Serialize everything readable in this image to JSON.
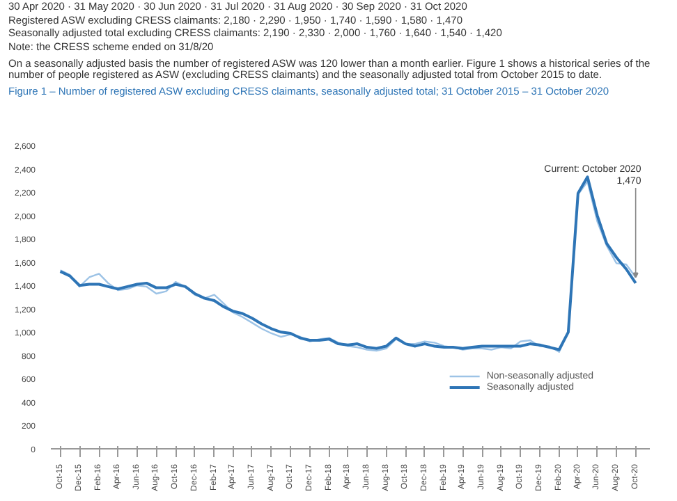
{
  "chart_data": {
    "type": "line",
    "title": "Figure 1 – Number of registered ASW excluding CRESS claimants, seasonally adjusted total; 31 October 2015 – 31 October 2020",
    "subtitle": "On a seasonally adjusted basis the number of registered ASW was 120 lower than a month earlier. Figure 1 shows a historical series of the number of people registered as ASW (excluding CRESS claimants) and the seasonally adjusted total from October 2015 to date.",
    "annotations": [
      "30 Apr 2020 · 31 May 2020 · 30 Jun 2020 · 31 Jul 2020 · 31 Aug 2020 · 30 Sep 2020 · 31 Oct 2020",
      "Registered ASW excluding CRESS claimants: 2,180 · 2,290 · 1,950 · 1,740 · 1,590 · 1,580 · 1,470",
      "Seasonally adjusted total excluding CRESS claimants: 2,190 · 2,330 · 2,000 · 1,760 · 1,640 · 1,540 · 1,420",
      "Note: the CRESS scheme ended on 31/8/20",
      {
        "text": "Current: October 2020\n1,470",
        "x": "2020-10",
        "y": 1470
      }
    ],
    "x": [
      "2015-10",
      "2015-11",
      "2015-12",
      "2016-01",
      "2016-02",
      "2016-03",
      "2016-04",
      "2016-05",
      "2016-06",
      "2016-07",
      "2016-08",
      "2016-09",
      "2016-10",
      "2016-11",
      "2016-12",
      "2017-01",
      "2017-02",
      "2017-03",
      "2017-04",
      "2017-05",
      "2017-06",
      "2017-07",
      "2017-08",
      "2017-09",
      "2017-10",
      "2017-11",
      "2017-12",
      "2018-01",
      "2018-02",
      "2018-03",
      "2018-04",
      "2018-05",
      "2018-06",
      "2018-07",
      "2018-08",
      "2018-09",
      "2018-10",
      "2018-11",
      "2018-12",
      "2019-01",
      "2019-02",
      "2019-03",
      "2019-04",
      "2019-05",
      "2019-06",
      "2019-07",
      "2019-08",
      "2019-09",
      "2019-10",
      "2019-11",
      "2019-12",
      "2020-01",
      "2020-02",
      "2020-03",
      "2020-04",
      "2020-05",
      "2020-06",
      "2020-07",
      "2020-08",
      "2020-09",
      "2020-10"
    ],
    "series": [
      {
        "name": "Non-seasonally adjusted",
        "color": "#9dc3e6",
        "values": [
          1530,
          1490,
          1390,
          1470,
          1500,
          1420,
          1360,
          1370,
          1400,
          1390,
          1330,
          1350,
          1430,
          1390,
          1320,
          1290,
          1320,
          1250,
          1170,
          1130,
          1080,
          1030,
          990,
          960,
          980,
          960,
          920,
          940,
          950,
          910,
          880,
          870,
          850,
          840,
          860,
          940,
          900,
          900,
          920,
          910,
          880,
          870,
          850,
          860,
          860,
          850,
          870,
          860,
          920,
          930,
          880,
          880,
          830,
          1000,
          2180,
          2290,
          1950,
          1740,
          1590,
          1580,
          1470
        ]
      },
      {
        "name": "Seasonally adjusted",
        "color": "#2e75b6",
        "values": [
          1520,
          1480,
          1400,
          1410,
          1410,
          1390,
          1370,
          1390,
          1410,
          1420,
          1380,
          1380,
          1410,
          1390,
          1330,
          1290,
          1270,
          1220,
          1180,
          1160,
          1120,
          1070,
          1030,
          1000,
          990,
          950,
          930,
          930,
          940,
          900,
          890,
          900,
          870,
          860,
          880,
          950,
          900,
          880,
          900,
          880,
          870,
          870,
          860,
          870,
          880,
          880,
          880,
          880,
          880,
          900,
          890,
          870,
          850,
          1000,
          2190,
          2330,
          2000,
          1760,
          1640,
          1540,
          1420
        ]
      }
    ],
    "xlim": [
      "2015-09-01",
      "2020-11-15"
    ],
    "xticks": [
      {
        "value": "2015-10",
        "label": "Oct-15"
      },
      {
        "value": "2015-12",
        "label": "Dec-15"
      },
      {
        "value": "2016-02",
        "label": "Feb-16"
      },
      {
        "value": "2016-04",
        "label": "Apr-16"
      },
      {
        "value": "2016-06",
        "label": "Jun-16"
      },
      {
        "value": "2016-08",
        "label": "Aug-16"
      },
      {
        "value": "2016-10",
        "label": "Oct-16"
      },
      {
        "value": "2016-12",
        "label": "Dec-16"
      },
      {
        "value": "2017-02",
        "label": "Feb-17"
      },
      {
        "value": "2017-04",
        "label": "Apr-17"
      },
      {
        "value": "2017-06",
        "label": "Jun-17"
      },
      {
        "value": "2017-08",
        "label": "Aug-17"
      },
      {
        "value": "2017-10",
        "label": "Oct-17"
      },
      {
        "value": "2017-12",
        "label": "Dec-17"
      },
      {
        "value": "2018-02",
        "label": "Feb-18"
      },
      {
        "value": "2018-04",
        "label": "Apr-18"
      },
      {
        "value": "2018-06",
        "label": "Jun-18"
      },
      {
        "value": "2018-08",
        "label": "Aug-18"
      },
      {
        "value": "2018-10",
        "label": "Oct-18"
      },
      {
        "value": "2018-12",
        "label": "Dec-18"
      },
      {
        "value": "2019-02",
        "label": "Feb-19"
      },
      {
        "value": "2019-04",
        "label": "Apr-19"
      },
      {
        "value": "2019-06",
        "label": "Jun-19"
      },
      {
        "value": "2019-08",
        "label": "Aug-19"
      },
      {
        "value": "2019-10",
        "label": "Oct-19"
      },
      {
        "value": "2019-12",
        "label": "Dec-19"
      },
      {
        "value": "2020-02",
        "label": "Feb-20"
      },
      {
        "value": "2020-04",
        "label": "Apr-20"
      },
      {
        "value": "2020-06",
        "label": "Jun-20"
      },
      {
        "value": "2020-08",
        "label": "Aug-20"
      },
      {
        "value": "2020-10",
        "label": "Oct-20"
      }
    ],
    "ylim": [
      0,
      2600
    ],
    "yticks": [
      0,
      200,
      400,
      600,
      800,
      {
        "value": 1000,
        "label": "1,000"
      },
      {
        "value": 1200,
        "label": "1,200"
      },
      {
        "value": 1400,
        "label": "1,400"
      },
      {
        "value": 1600,
        "label": "1,600"
      },
      {
        "value": 1800,
        "label": "1,800"
      },
      {
        "value": 2000,
        "label": "2,000"
      },
      {
        "value": 2200,
        "label": "2,200"
      },
      {
        "value": 2400,
        "label": "2,400"
      },
      {
        "value": 2600,
        "label": "2,600"
      }
    ],
    "grid": false,
    "legend": "bottom right",
    "marker": "none",
    "line_style": "solid"
  }
}
